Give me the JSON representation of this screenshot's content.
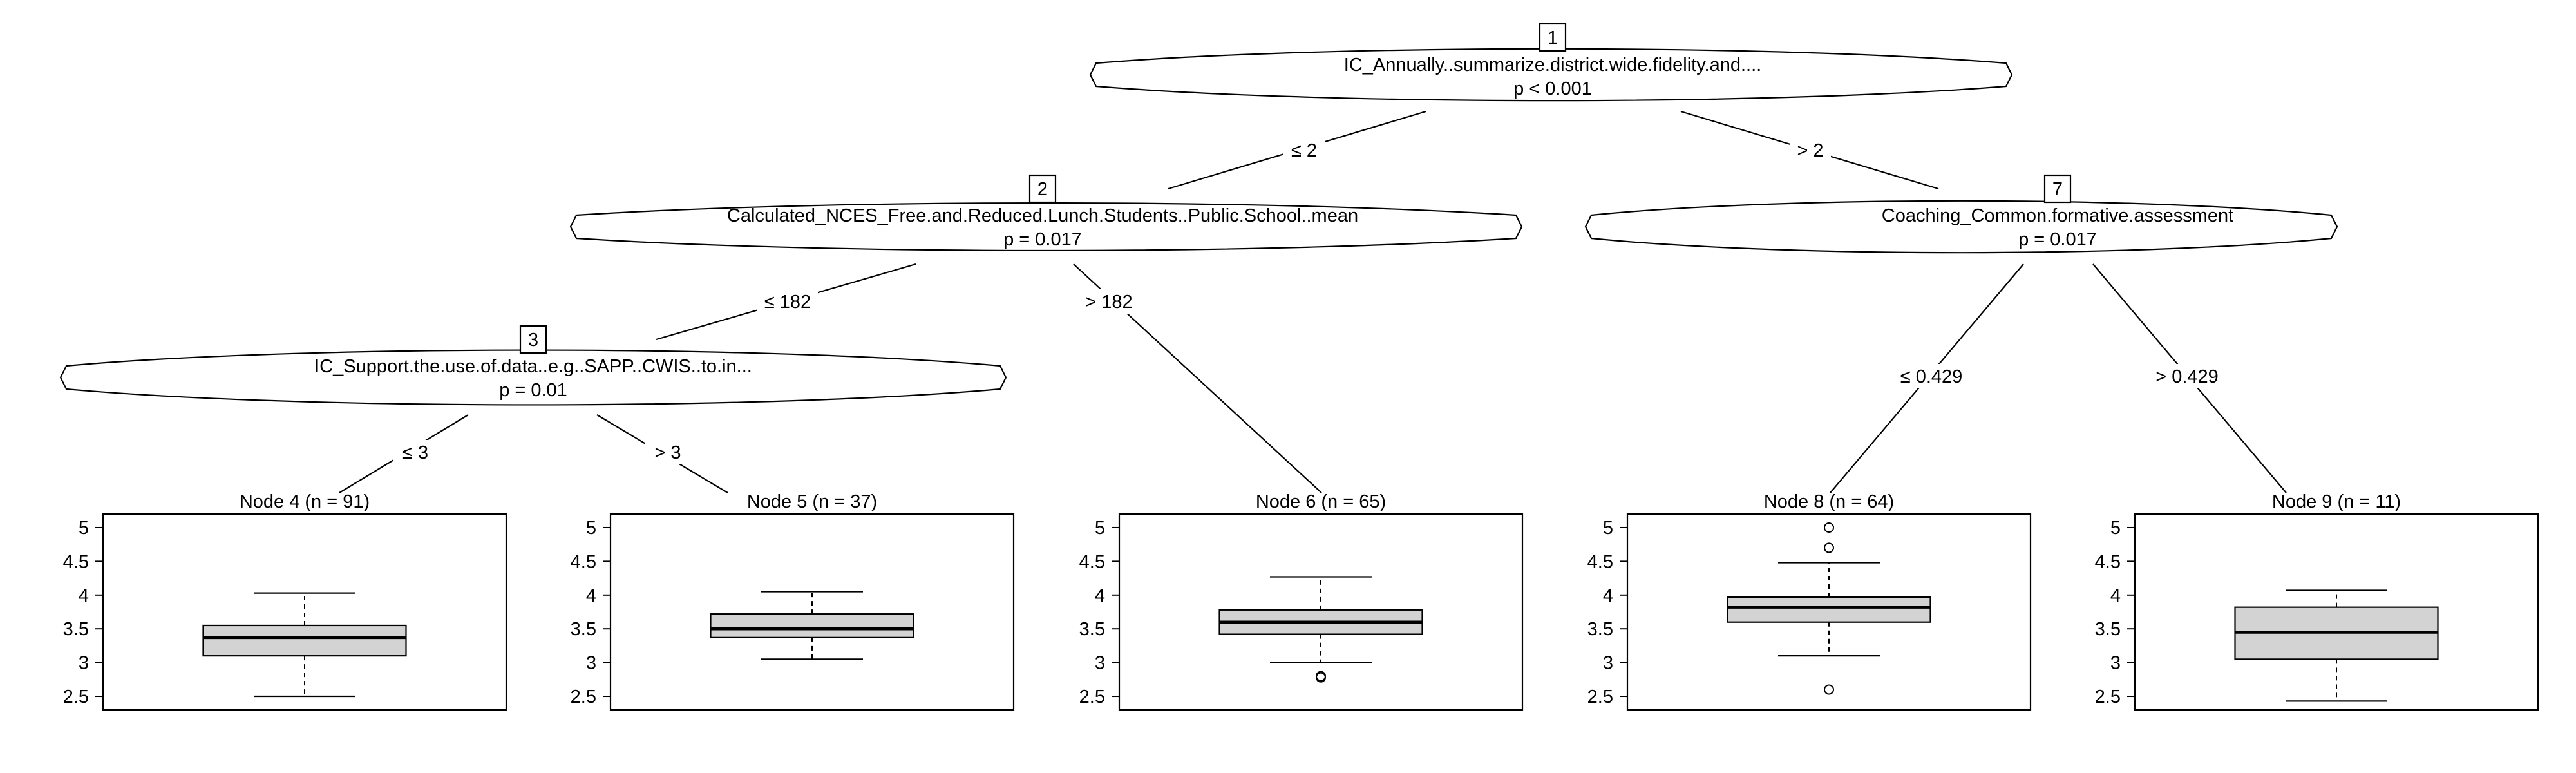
{
  "tree": {
    "inner_nodes": [
      {
        "id": "1",
        "variable": "IC_Annually..summarize.district.wide.fidelity.and....",
        "pvalue": "p < 0.001"
      },
      {
        "id": "2",
        "variable": "Calculated_NCES_Free.and.Reduced.Lunch.Students..Public.School..mean",
        "pvalue": "p = 0.017"
      },
      {
        "id": "3",
        "variable": "IC_Support.the.use.of.data..e.g..SAPP..CWIS..to.in...",
        "pvalue": "p = 0.01"
      },
      {
        "id": "7",
        "variable": "Coaching_Common.formative.assessment",
        "pvalue": "p = 0.017"
      }
    ],
    "edges": [
      {
        "from": "1",
        "to": "2",
        "label": "≤ 2"
      },
      {
        "from": "1",
        "to": "7",
        "label": "> 2"
      },
      {
        "from": "2",
        "to": "3",
        "label": "≤ 182"
      },
      {
        "from": "2",
        "to": "6",
        "label": "> 182"
      },
      {
        "from": "3",
        "to": "4",
        "label": "≤ 3"
      },
      {
        "from": "3",
        "to": "5",
        "label": "> 3"
      },
      {
        "from": "7",
        "to": "8",
        "label": "≤ 0.429"
      },
      {
        "from": "7",
        "to": "9",
        "label": "> 0.429"
      }
    ]
  },
  "chart_data": {
    "type": "boxplot",
    "y_axis": {
      "ticks": [
        "2.5",
        "3",
        "3.5",
        "4",
        "4.5",
        "5"
      ],
      "range": [
        2.3,
        5.2
      ]
    },
    "panels": [
      {
        "id": "4",
        "title": "Node 4 (n = 91)",
        "whisker_low": 2.5,
        "q1": 3.1,
        "median": 3.37,
        "q3": 3.55,
        "whisker_high": 4.03,
        "outliers": []
      },
      {
        "id": "5",
        "title": "Node 5 (n = 37)",
        "whisker_low": 3.05,
        "q1": 3.37,
        "median": 3.5,
        "q3": 3.72,
        "whisker_high": 4.05,
        "outliers": []
      },
      {
        "id": "6",
        "title": "Node 6 (n = 65)",
        "whisker_low": 3.0,
        "q1": 3.42,
        "median": 3.6,
        "q3": 3.78,
        "whisker_high": 4.27,
        "outliers": [
          2.78,
          2.8
        ]
      },
      {
        "id": "8",
        "title": "Node 8 (n = 64)",
        "whisker_low": 3.1,
        "q1": 3.6,
        "median": 3.82,
        "q3": 3.97,
        "whisker_high": 4.48,
        "outliers": [
          5.0,
          4.7,
          2.6
        ]
      },
      {
        "id": "9",
        "title": "Node 9 (n = 11)",
        "whisker_low": 2.43,
        "q1": 3.05,
        "median": 3.45,
        "q3": 3.82,
        "whisker_high": 4.07,
        "outliers": []
      }
    ]
  }
}
